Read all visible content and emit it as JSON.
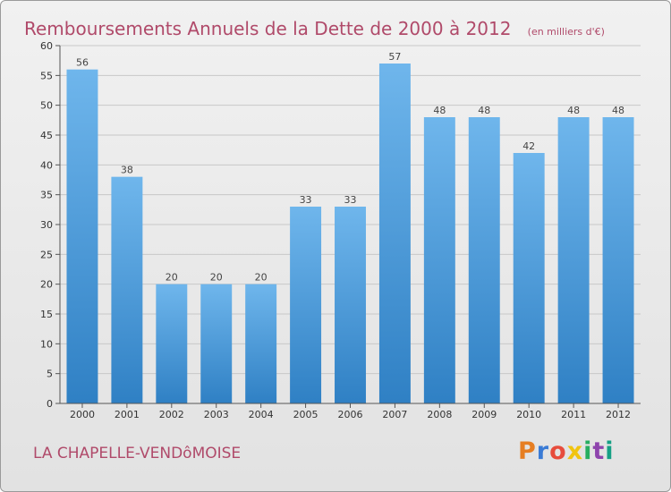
{
  "header": {
    "title": "Remboursements Annuels de la Dette de 2000 à 2012",
    "unit": "(en milliers d'€)"
  },
  "footer": {
    "commune": "LA CHAPELLE-VENDôMOISE",
    "logo_text": "Proxiti",
    "logo_colors": [
      "#e67e22",
      "#3a7bd5",
      "#e74c3c",
      "#f1c40f",
      "#27ae60",
      "#8e44ad",
      "#16a085"
    ]
  },
  "colors": {
    "bar_light": "#6fb6ec",
    "bar_dark": "#2f80c4",
    "title": "#b04a6a",
    "grid": "#c8c8c8"
  },
  "chart_data": {
    "type": "bar",
    "title": "Remboursements Annuels de la Dette de 2000 à 2012",
    "ylabel": "(en milliers d'€)",
    "xlabel": "",
    "categories": [
      "2000",
      "2001",
      "2002",
      "2003",
      "2004",
      "2005",
      "2006",
      "2007",
      "2008",
      "2009",
      "2010",
      "2011",
      "2012"
    ],
    "values": [
      56,
      38,
      20,
      20,
      20,
      33,
      33,
      57,
      48,
      48,
      42,
      48,
      48
    ],
    "ylim": [
      0,
      60
    ],
    "yticks": [
      0,
      5,
      10,
      15,
      20,
      25,
      30,
      35,
      40,
      45,
      50,
      55,
      60
    ],
    "grid": true
  }
}
